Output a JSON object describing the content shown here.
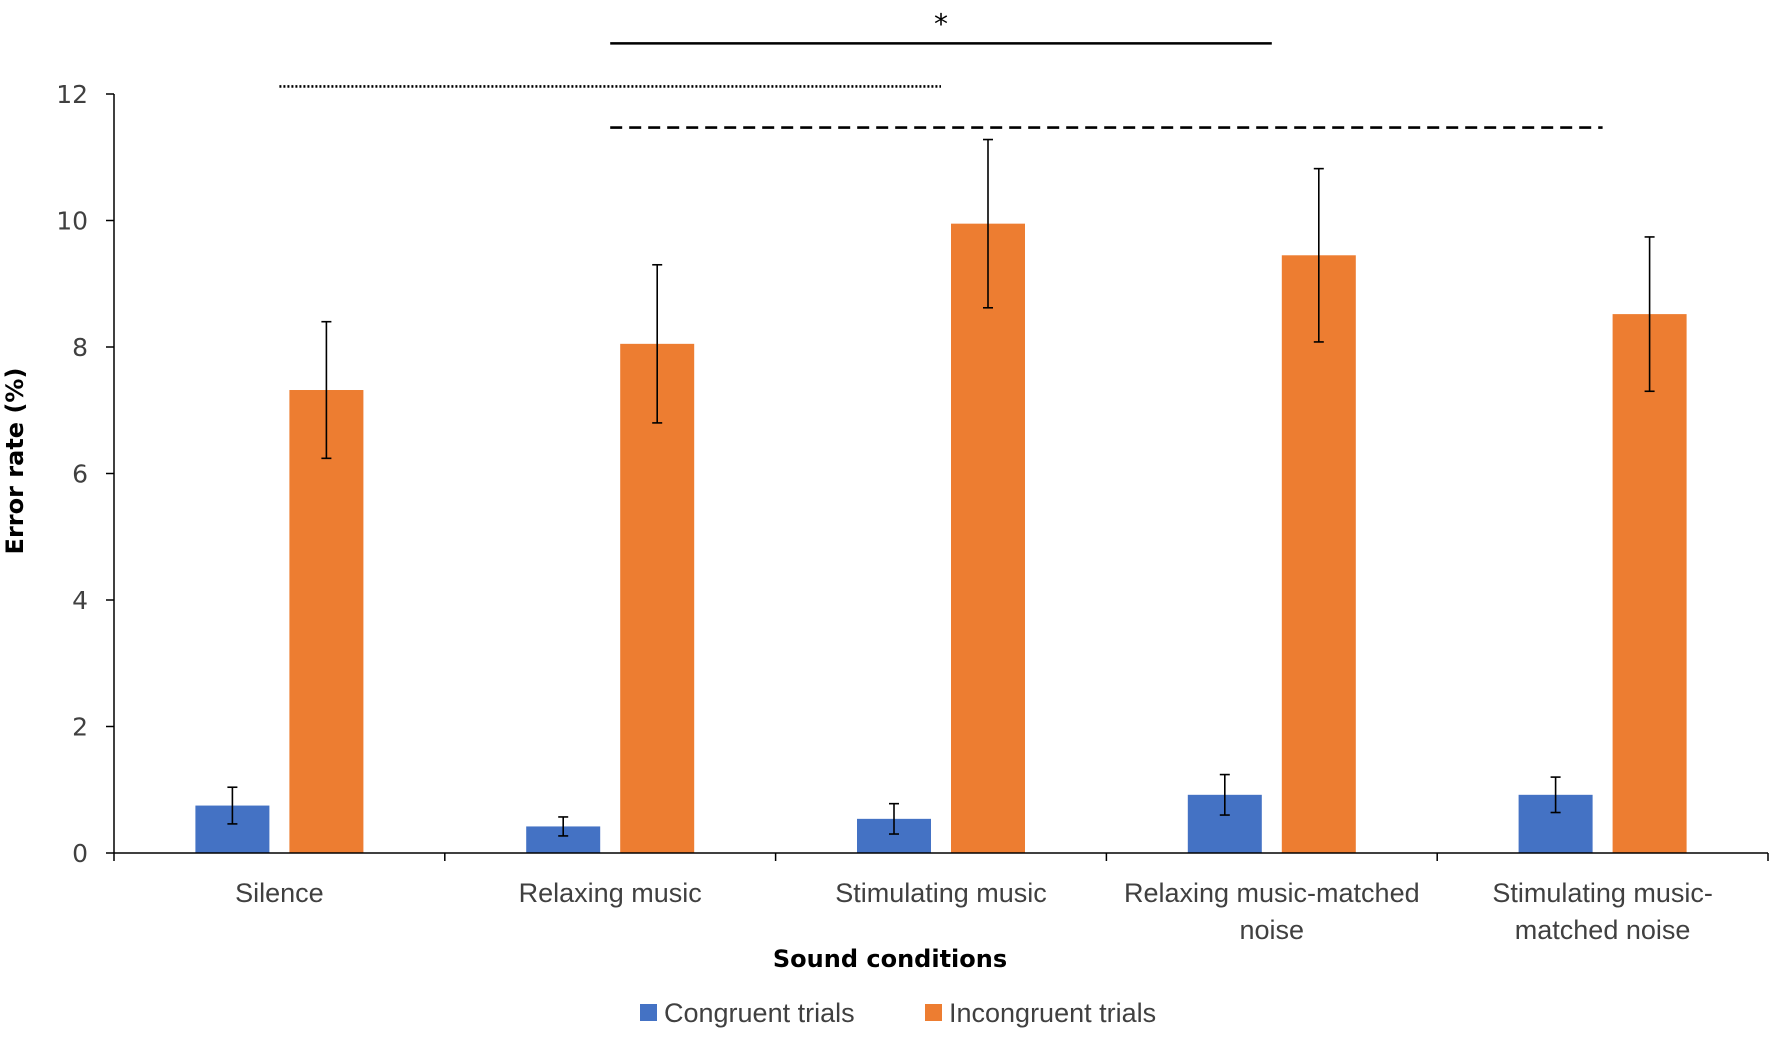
{
  "chart_data": {
    "type": "bar",
    "title": "",
    "xlabel": "Sound conditions",
    "ylabel": "Error rate (%)",
    "ylim": [
      0,
      12
    ],
    "yticks": [
      0,
      2,
      4,
      6,
      8,
      10,
      12
    ],
    "grid": false,
    "legend_position": "bottom",
    "categories": [
      [
        "Silence"
      ],
      [
        "Relaxing music"
      ],
      [
        "Stimulating music"
      ],
      [
        "Relaxing music-matched",
        "noise"
      ],
      [
        "Stimulating music-",
        "matched noise"
      ]
    ],
    "series": [
      {
        "name": "Congruent trials",
        "color": "#4472C4",
        "values": [
          0.75,
          0.42,
          0.54,
          0.92,
          0.92
        ],
        "error": [
          0.29,
          0.15,
          0.24,
          0.32,
          0.28
        ]
      },
      {
        "name": "Incongruent trials",
        "color": "#ED7D31",
        "values": [
          7.32,
          8.05,
          9.95,
          9.45,
          8.52
        ],
        "error": [
          1.08,
          1.25,
          1.33,
          1.37,
          1.22
        ]
      }
    ],
    "significance": [
      {
        "from_category": 1,
        "to_category": 3,
        "y": 12.8,
        "style": "solid",
        "label": "*"
      },
      {
        "from_category": 0,
        "to_category": 2,
        "y": 12.12,
        "style": "dotted",
        "label": ""
      },
      {
        "from_category": 1,
        "to_category": 4,
        "y": 11.47,
        "style": "dashed",
        "label": ""
      }
    ]
  }
}
